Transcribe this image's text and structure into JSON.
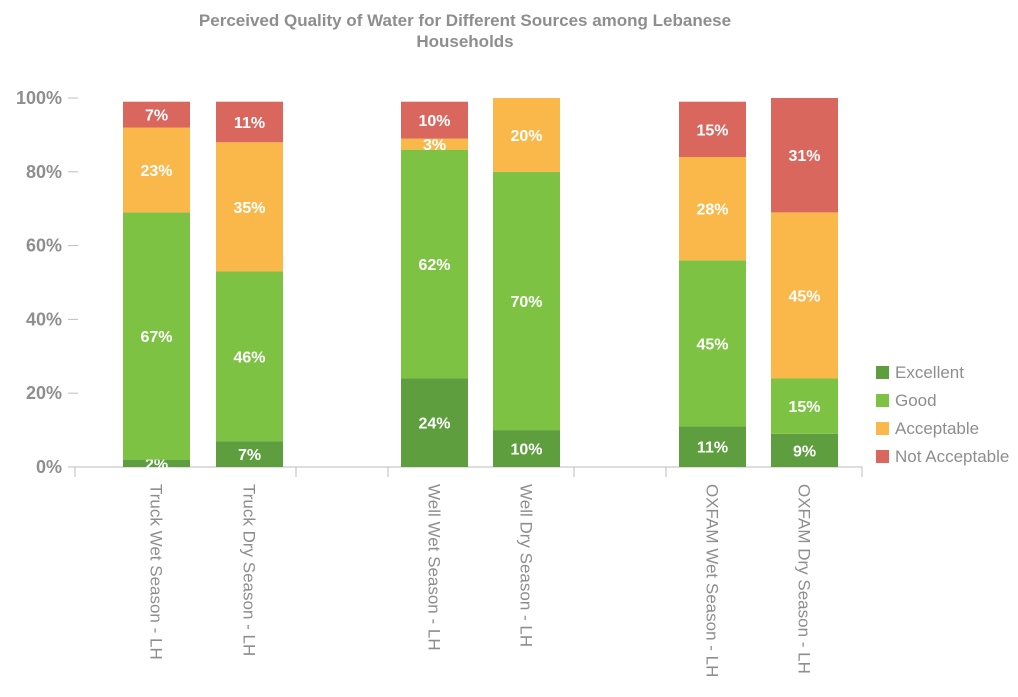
{
  "chart_data": {
    "type": "bar",
    "stacked": true,
    "title": [
      "Perceived Quality of Water for Different Sources among Lebanese",
      "Households"
    ],
    "categories": [
      "Truck Wet Season - LH",
      "Truck Dry Season - LH",
      "Well Wet Season - LH",
      "Well Dry Season - LH",
      "OXFAM Wet Season - LH",
      "OXFAM Dry Season - LH"
    ],
    "series": [
      {
        "name": "Excellent",
        "color": "#5e9e3e",
        "values": [
          2,
          7,
          24,
          10,
          11,
          9
        ],
        "labels": [
          "2%",
          "7%",
          "24%",
          "10%",
          "11%",
          "9%"
        ]
      },
      {
        "name": "Good",
        "color": "#7dc242",
        "values": [
          67,
          46,
          62,
          70,
          45,
          15
        ],
        "labels": [
          "67%",
          "46%",
          "62%",
          "70%",
          "45%",
          "15%"
        ]
      },
      {
        "name": "Acceptable",
        "color": "#fbb84a",
        "values": [
          23,
          35,
          3,
          20,
          28,
          45
        ],
        "labels": [
          "23%",
          "35%",
          "3%",
          "20%",
          "28%",
          "45%"
        ]
      },
      {
        "name": "Not Acceptable",
        "color": "#d9675e",
        "values": [
          7,
          11,
          10,
          0,
          15,
          31
        ],
        "labels": [
          "7%",
          "11%",
          "10%",
          "",
          "15%",
          "31%"
        ]
      }
    ],
    "y_ticks": [
      "0%",
      "20%",
      "40%",
      "60%",
      "80%",
      "100%"
    ],
    "ylim": [
      0,
      100
    ],
    "legend_position": "right",
    "grid": false
  }
}
